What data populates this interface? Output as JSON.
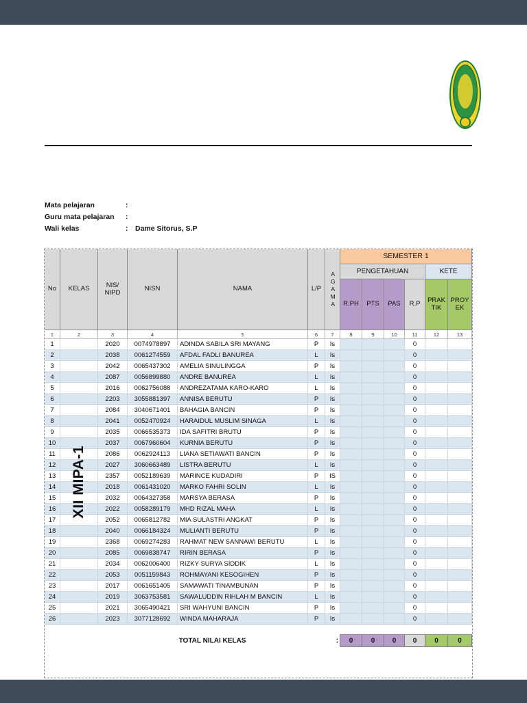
{
  "viewer": {
    "background": "#3E4A59",
    "page_background": "#FFFFFF"
  },
  "meta": {
    "rows": [
      {
        "label": "Mata pelajaran",
        "colon": ":",
        "value": ""
      },
      {
        "label": "Guru mata pelajaran",
        "colon": ":",
        "value": ""
      },
      {
        "label": "Wali kelas",
        "colon": ":",
        "value": "Dame Sitorus, S.P"
      }
    ]
  },
  "table": {
    "headers": {
      "no": "No",
      "kelas": "KELAS",
      "nis": "NIS/\nNIPD",
      "nisn": "NISN",
      "nama": "NAMA",
      "lp": "L/P",
      "agama": "AGAMA",
      "semester": "SEMESTER 1",
      "pengetahuan": "PENGETAHUAN",
      "keterampilan": "KETE",
      "rph": "R.PH",
      "pts": "PTS",
      "pas": "PAS",
      "rp": "R.P",
      "praktik": "PRAK\nTIK",
      "proyek": "PROY\nEK"
    },
    "column_numbers": [
      "1",
      "2",
      "3",
      "4",
      "5",
      "6",
      "7",
      "8",
      "9",
      "10",
      "11",
      "12",
      "13"
    ],
    "kelas_value": "XII MIPA-1",
    "rows": [
      {
        "no": "1",
        "nis": "2020",
        "nisn": "0074978897",
        "nama": "ADINDA SABILA SRI MAYANG",
        "lp": "P",
        "agama": "Is",
        "rp": "0"
      },
      {
        "no": "2",
        "nis": "2038",
        "nisn": "0061274559",
        "nama": "AFDAL FADLI BANUREA",
        "lp": "L",
        "agama": "Is",
        "rp": "0"
      },
      {
        "no": "3",
        "nis": "2042",
        "nisn": "0065437302",
        "nama": "AMELIA SINULINGGA",
        "lp": "P",
        "agama": "Is",
        "rp": "0"
      },
      {
        "no": "4",
        "nis": "2087",
        "nisn": "0056899880",
        "nama": "ANDRE BANUREA",
        "lp": "L",
        "agama": "Is",
        "rp": "0"
      },
      {
        "no": "5",
        "nis": "2016",
        "nisn": "0062756088",
        "nama": "ANDREZATAMA KARO-KARO",
        "lp": "L",
        "agama": "Is",
        "rp": "0"
      },
      {
        "no": "6",
        "nis": "2203",
        "nisn": "3055881397",
        "nama": "ANNISA BERUTU",
        "lp": "P",
        "agama": "Is",
        "rp": "0"
      },
      {
        "no": "7",
        "nis": "2084",
        "nisn": "3040671401",
        "nama": "BAHAGIA BANCIN",
        "lp": "P",
        "agama": "Is",
        "rp": "0"
      },
      {
        "no": "8",
        "nis": "2041",
        "nisn": "0052470924",
        "nama": "HARAIDUL MUSLIM SINAGA",
        "lp": "L",
        "agama": "Is",
        "rp": "0"
      },
      {
        "no": "9",
        "nis": "2035",
        "nisn": "0066535373",
        "nama": "IDA SAFITRI BRUTU",
        "lp": "P",
        "agama": "Is",
        "rp": "0"
      },
      {
        "no": "10",
        "nis": "2037",
        "nisn": "0067960604",
        "nama": "KURNIA BERUTU",
        "lp": "P",
        "agama": "Is",
        "rp": "0"
      },
      {
        "no": "11",
        "nis": "2086",
        "nisn": "0062924113",
        "nama": "LIANA SETIAWATI BANCIN",
        "lp": "P",
        "agama": "Is",
        "rp": "0"
      },
      {
        "no": "12",
        "nis": "2027",
        "nisn": "3060663489",
        "nama": "LISTRA BERUTU",
        "lp": "L",
        "agama": "Is",
        "rp": "0"
      },
      {
        "no": "13",
        "nis": "2357",
        "nisn": "0052189639",
        "nama": "MARINCE KUDADIRI",
        "lp": "P",
        "agama": "IS",
        "rp": "0"
      },
      {
        "no": "14",
        "nis": "2018",
        "nisn": "0061431020",
        "nama": "MARKO FAHRI SOLIN",
        "lp": "L",
        "agama": "Is",
        "rp": "0"
      },
      {
        "no": "15",
        "nis": "2032",
        "nisn": "0064327358",
        "nama": "MARSYA BERASA",
        "lp": "P",
        "agama": "Is",
        "rp": "0"
      },
      {
        "no": "16",
        "nis": "2022",
        "nisn": "0058289179",
        "nama": "MHD RIZAL MAHA",
        "lp": "L",
        "agama": "Is",
        "rp": "0"
      },
      {
        "no": "17",
        "nis": "2052",
        "nisn": "0065812782",
        "nama": "MIA SULASTRI ANGKAT",
        "lp": "P",
        "agama": "Is",
        "rp": "0"
      },
      {
        "no": "18",
        "nis": "2040",
        "nisn": "0066184324",
        "nama": "MULIANTI BERUTU",
        "lp": "P",
        "agama": "Is",
        "rp": "0"
      },
      {
        "no": "19",
        "nis": "2368",
        "nisn": "0069274283",
        "nama": "RAHMAT NEW SANNAWI BERUTU",
        "lp": "L",
        "agama": "Is",
        "rp": "0"
      },
      {
        "no": "20",
        "nis": "2085",
        "nisn": "0069838747",
        "nama": "RIRIN BERASA",
        "lp": "P",
        "agama": "Is",
        "rp": "0"
      },
      {
        "no": "21",
        "nis": "2034",
        "nisn": "0062006400",
        "nama": "RIZKY SURYA SIDDIK",
        "lp": "L",
        "agama": "Is",
        "rp": "0"
      },
      {
        "no": "22",
        "nis": "2053",
        "nisn": "0051159843",
        "nama": "ROHMAYANI KESOGIHEN",
        "lp": "P",
        "agama": "Is",
        "rp": "0"
      },
      {
        "no": "23",
        "nis": "2017",
        "nisn": "0061651405",
        "nama": "SAMAWATI TINAMBUNAN",
        "lp": "P",
        "agama": "Is",
        "rp": "0"
      },
      {
        "no": "24",
        "nis": "2019",
        "nisn": "3063753581",
        "nama": "SAWALUDDIN RIHLAH M BANCIN",
        "lp": "L",
        "agama": "Is",
        "rp": "0"
      },
      {
        "no": "25",
        "nis": "2021",
        "nisn": "3065490421",
        "nama": "SRI WAHYUNI BANCIN",
        "lp": "P",
        "agama": "Is",
        "rp": "0"
      },
      {
        "no": "26",
        "nis": "2023",
        "nisn": "3077128692",
        "nama": "WINDA MAHARAJA",
        "lp": "P",
        "agama": "Is",
        "rp": "0"
      }
    ],
    "total": {
      "label": "TOTAL NILAI KELAS",
      "colon": ":",
      "values": [
        "0",
        "0",
        "0",
        "0",
        "0",
        "0"
      ]
    }
  },
  "colors": {
    "semester_band": "#FBC9A0",
    "pengetahuan_band": "#D9D9D9",
    "keterampilan_band": "#DCE6F1",
    "knowledge_header_purple": "#B59BC9",
    "skill_header_green": "#A5C868",
    "row_stripe_blue": "#DCE6F1",
    "header_gray": "#D9D9D9",
    "logo_green": "#1E7B33",
    "logo_yellow": "#F0D32B"
  }
}
